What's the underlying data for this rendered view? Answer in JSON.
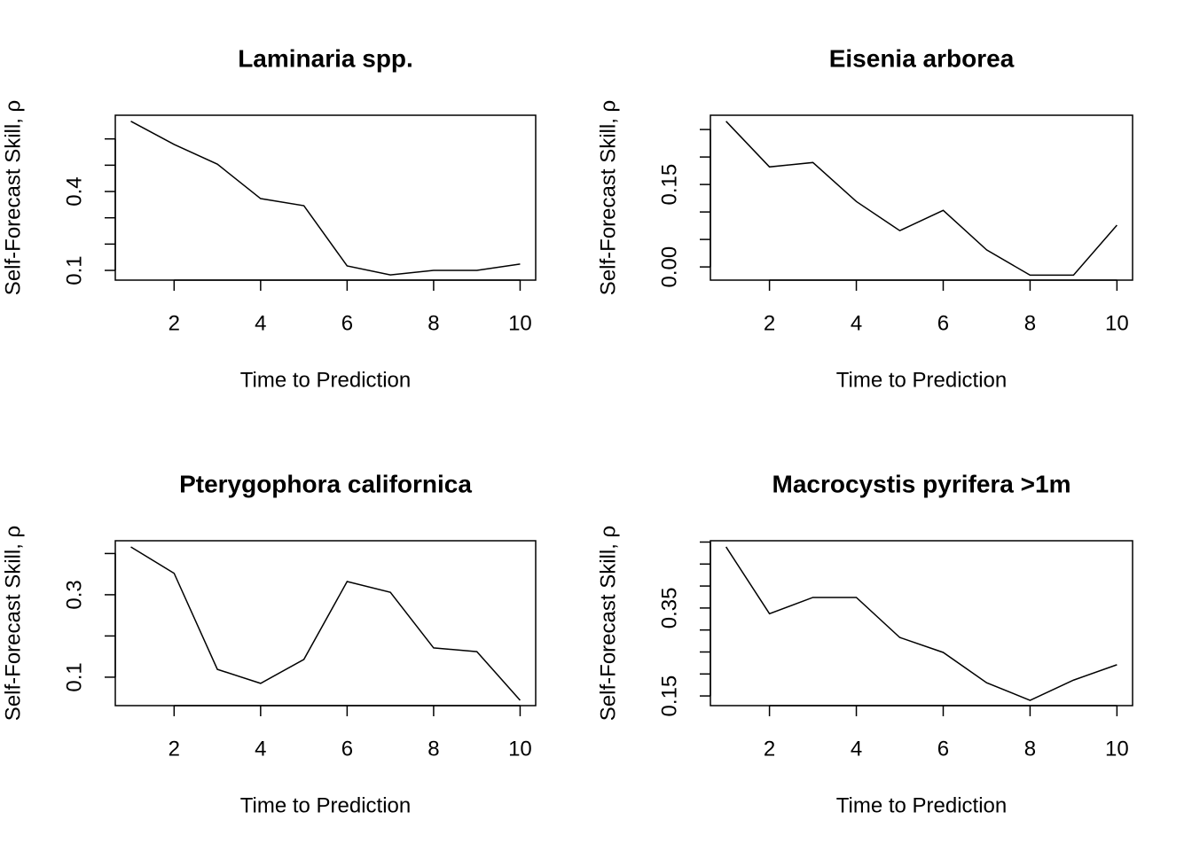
{
  "chart_data": [
    {
      "type": "line",
      "title": "Laminaria spp.",
      "xlabel": "Time to Prediction",
      "ylabel": "Self-Forecast Skill, ρ",
      "x": [
        1,
        2,
        3,
        4,
        5,
        6,
        7,
        8,
        9,
        10
      ],
      "values": [
        0.667,
        0.579,
        0.504,
        0.373,
        0.346,
        0.117,
        0.083,
        0.1,
        0.1,
        0.124
      ],
      "color": "#000000",
      "xlim": [
        0.64,
        10.36
      ],
      "xticks": [
        2,
        4,
        6,
        8,
        10
      ],
      "ylim": [
        0.063,
        0.69
      ],
      "yticks": [
        0.1,
        0.4
      ],
      "yminorticks": [
        0.2,
        0.3,
        0.5,
        0.6
      ]
    },
    {
      "type": "line",
      "title": "Eisenia arborea",
      "xlabel": "Time to Prediction",
      "ylabel": "Self-Forecast Skill, ρ",
      "x": [
        1,
        2,
        3,
        4,
        5,
        6,
        7,
        8,
        9,
        10
      ],
      "values": [
        0.265,
        0.182,
        0.19,
        0.119,
        0.066,
        0.103,
        0.031,
        -0.015,
        -0.015,
        0.076
      ],
      "color": "#000000",
      "xlim": [
        0.64,
        10.36
      ],
      "xticks": [
        2,
        4,
        6,
        8,
        10
      ],
      "ylim": [
        -0.024,
        0.276
      ],
      "yticks": [
        {
          "value": 0,
          "label": "0.00"
        },
        0.15
      ],
      "yminorticks": [
        0.05,
        0.1,
        0.2,
        0.25
      ]
    },
    {
      "type": "line",
      "title": "Pterygophora californica",
      "xlabel": "Time to Prediction",
      "ylabel": "Self-Forecast Skill, ρ",
      "x": [
        1,
        2,
        3,
        4,
        5,
        6,
        7,
        8,
        9,
        10
      ],
      "values": [
        0.416,
        0.352,
        0.119,
        0.085,
        0.143,
        0.332,
        0.306,
        0.171,
        0.162,
        0.044
      ],
      "color": "#000000",
      "xlim": [
        0.64,
        10.36
      ],
      "xticks": [
        2,
        4,
        6,
        8,
        10
      ],
      "ylim": [
        0.031,
        0.431
      ],
      "yticks": [
        0.1,
        0.3
      ],
      "yminorticks": [
        0.2,
        0.4
      ]
    },
    {
      "type": "line",
      "title": "Macrocystis pyrifera >1m",
      "xlabel": "Time to Prediction",
      "ylabel": "Self-Forecast Skill, ρ",
      "x": [
        1,
        2,
        3,
        4,
        5,
        6,
        7,
        8,
        9,
        10
      ],
      "values": [
        0.489,
        0.337,
        0.374,
        0.374,
        0.283,
        0.249,
        0.18,
        0.14,
        0.186,
        0.221
      ],
      "color": "#000000",
      "xlim": [
        0.64,
        10.36
      ],
      "xticks": [
        2,
        4,
        6,
        8,
        10
      ],
      "ylim": [
        0.128,
        0.503
      ],
      "yticks": [
        0.15,
        0.35
      ],
      "yminorticks": [
        0.2,
        0.25,
        0.3,
        0.4,
        0.45,
        0.5
      ]
    }
  ]
}
